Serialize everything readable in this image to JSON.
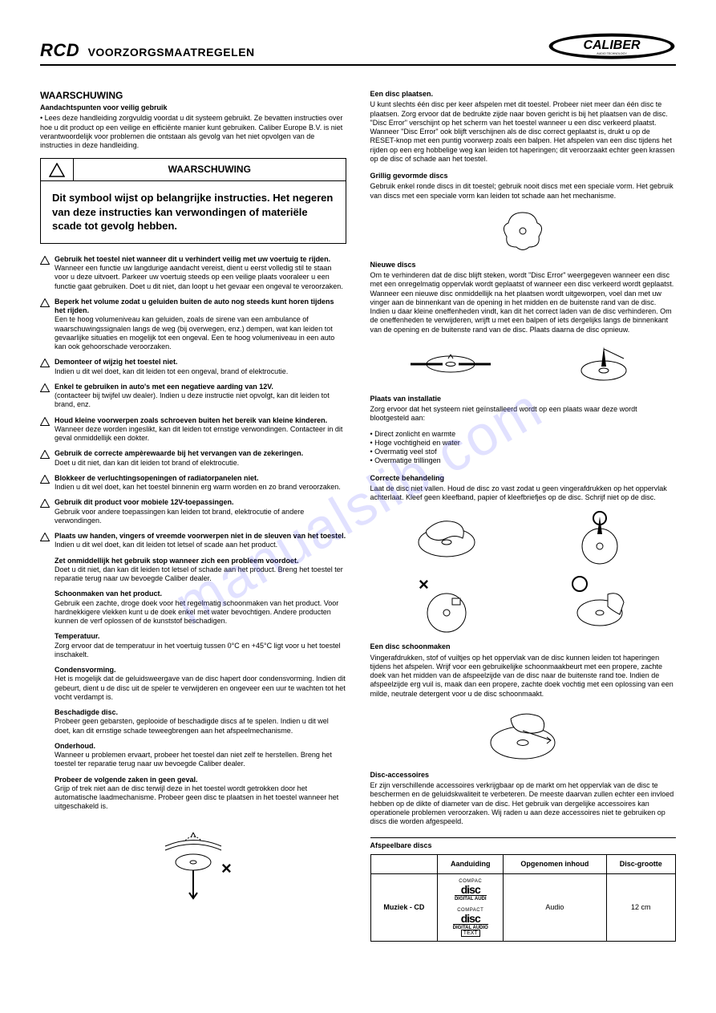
{
  "header": {
    "code": "RCD",
    "title": "VOORZORGSMAATREGELEN",
    "brand": "CALIBER",
    "brand_sub": "AUDIO TECHNOLOGY"
  },
  "watermark": "manualslib.com",
  "left": {
    "warning_heading": "WAARSCHUWING",
    "safe_use_title": "Aandachtspunten voor veilig gebruik",
    "safe_use_text": "• Lees deze handleiding zorgvuldig voordat u dit systeem gebruikt. Ze bevatten instructies over hoe u dit product op een veilige en efficiënte manier kunt gebruiken. Caliber Europe B.V. is niet verantwoordelijk voor problemen die ontstaan als gevolg van het niet opvolgen van de instructies in deze handleiding.",
    "warning_box_label": "WAARSCHUWING",
    "warning_box_text": "Dit symbool wijst op belangrijke instructies. Het negeren van deze instructies kan verwondingen of materiële scade tot gevolg hebben.",
    "tri_items": [
      {
        "b": "Gebruik het toestel niet wanneer dit u verhindert veilig met uw voertuig te rijden.",
        "t": "Wanneer een functie uw langdurige aandacht vereist, dient u eerst volledig stil te staan voor u deze uitvoert. Parkeer uw voertuig steeds op een veilige plaats vooraleer u een functie gaat gebruiken. Doet u dit niet, dan loopt u het gevaar een ongeval te veroorzaken."
      },
      {
        "b": "Beperk het volume zodat u geluiden buiten de auto nog steeds kunt horen tijdens het rijden.",
        "t": "Een te hoog volumeniveau kan geluiden, zoals de sirene van een ambulance of waarschuwingssignalen langs de weg (bij overwegen, enz.) dempen, wat kan leiden tot gevaarlijke situaties en mogelijk tot een ongeval. Een te hoog volumeniveau in een auto kan ook gehoorschade veroorzaken."
      },
      {
        "b": "Demonteer of wijzig het toestel niet.",
        "t": "Indien u dit wel doet, kan dit leiden tot een ongeval, brand of elektrocutie."
      },
      {
        "b": "Enkel te gebruiken in auto's met een negatieve aarding van 12V.",
        "t": "(contacteer bij twijfel uw dealer). Indien u deze instructie niet opvolgt, kan dit leiden tot brand, enz."
      },
      {
        "b": "Houd kleine voorwerpen zoals schroeven buiten het bereik van kleine kinderen.",
        "t": "Wanneer deze worden ingeslikt, kan dit leiden tot ernstige verwondingen. Contacteer in dit geval onmiddellijk een dokter."
      },
      {
        "b": "Gebruik de correcte ampèrewaarde bij het vervangen van de zekeringen.",
        "t": "Doet u dit niet, dan kan dit leiden tot brand of elektrocutie."
      },
      {
        "b": "Blokkeer de verluchtingsopeningen of radiatorpanelen niet.",
        "t": "Indien u dit wel doet, kan het toestel binnenin erg warm worden en zo brand veroorzaken."
      },
      {
        "b": "Gebruik dit product voor mobiele 12V-toepassingen.",
        "t": "Gebruik voor andere toepassingen kan leiden tot brand, elektrocutie of andere verwondingen."
      },
      {
        "b": "Plaats uw handen, vingers of vreemde voorwerpen niet in de sleuven van het toestel.",
        "t": "Indien u dit wel doet, kan dit leiden tot letsel of scade aan het product."
      }
    ],
    "plain_items": [
      {
        "b": "Zet onmiddellijk het gebruik stop wanneer zich een probleem voordoet.",
        "t": "Doet u dit niet, dan kan dit leiden tot letsel of schade aan het product. Breng het toestel ter reparatie terug naar uw bevoegde Caliber dealer."
      },
      {
        "b": "Schoonmaken van het product.",
        "t": "Gebruik een zachte, droge doek voor het regelmatig schoonmaken van het product. Voor hardnekkigere vlekken kunt u de doek enkel met water bevochtigen. Andere producten kunnen de verf oplossen of de kunststof beschadigen."
      },
      {
        "b": "Temperatuur.",
        "t": "Zorg ervoor dat de temperatuur in het voertuig tussen 0°C en +45°C ligt voor u het toestel inschakelt."
      },
      {
        "b": "Condensvorming.",
        "t": "Het is mogelijk dat de geluidsweergave van de disc hapert door condensvorming. Indien dit gebeurt, dient u de disc uit de speler te verwijderen en ongeveer een uur te wachten tot het vocht verdampt is."
      },
      {
        "b": "Beschadigde disc.",
        "t": "Probeer geen gebarsten, geplooide of beschadigde discs af te spelen. Indien u dit wel doet, kan dit ernstige schade teweegbrengen aan het afspeelmechanisme."
      },
      {
        "b": "Onderhoud.",
        "t": "Wanneer u problemen ervaart, probeer het toestel dan niet zelf te herstellen. Breng het toestel ter reparatie terug naar uw bevoegde Caliber dealer."
      },
      {
        "b": "Probeer de volgende zaken in geen geval.",
        "t": "Grijp of trek niet aan de disc terwijl deze in het toestel wordt getrokken door het automatische laadmechanisme. Probeer geen disc te plaatsen in het toestel wanneer het uitgeschakeld is."
      }
    ]
  },
  "right": {
    "s1_title": "Een disc plaatsen.",
    "s1_text": "U kunt slechts één disc per keer afspelen met dit toestel. Probeer niet meer dan één disc te plaatsen. Zorg ervoor dat de bedrukte zijde naar boven gericht is bij het plaatsen van de disc. \"Disc Error\" verschijnt op het scherm van het toestel wanneer u een disc verkeerd plaatst. Wanneer \"Disc Error\" ook blijft verschijnen als de disc correct geplaatst is, drukt u op de RESET-knop met een puntig voorwerp zoals een balpen. Het afspelen van een disc tijdens het rijden op een erg hobbelige weg kan leiden tot haperingen; dit veroorzaakt echter geen krassen op de disc of schade aan het toestel.",
    "s2_title": "Grillig gevormde discs",
    "s2_text": "Gebruik enkel ronde discs in dit toestel; gebruik nooit discs met een speciale vorm. Het gebruik van discs met een speciale vorm kan leiden tot schade aan het mechanisme.",
    "s3_title": "Nieuwe discs",
    "s3_text": "Om te verhinderen dat de disc blijft steken, wordt \"Disc Error\" weergegeven wanneer een disc met een onregelmatig oppervlak wordt geplaatst of wanneer een disc verkeerd wordt geplaatst. Wanneer een nieuwe disc onmiddellijk na het plaatsen wordt uitgeworpen, voel dan met uw vinger aan de binnenkant van de opening in het midden en de buitenste rand van de disc. Indien u daar kleine oneffenheden vindt, kan dit het correct laden van de disc verhinderen. Om de oneffenheden te verwijderen, wrijft u met een balpen of iets dergelijks langs de binnenkant van de opening en de buitenste rand van de disc. Plaats daarna de disc opnieuw.",
    "s4_title": "Plaats van installatie",
    "s4_text": "Zorg ervoor dat het systeem niet geïnstalleerd wordt op een plaats waar deze wordt blootgesteld aan:",
    "s4_bullets": [
      "Direct zonlicht en warmte",
      "Hoge vochtigheid en water",
      "Overmatig veel stof",
      "Overmatige trillingen"
    ],
    "s5_title": "Correcte behandeling",
    "s5_text": "Laat de disc niet vallen. Houd de disc zo vast zodat u geen vingerafdrukken op het oppervlak achterlaat. Kleef geen kleefband, papier of kleefbriefjes op de disc. Schrijf niet op de disc.",
    "s6_title": "Een disc schoonmaken",
    "s6_text": "Vingerafdrukken, stof of vuiltjes op het oppervlak van de disc kunnen leiden tot haperingen tijdens het afspelen. Wrijf voor een gebruikelijke schoonmaakbeurt met een propere, zachte doek van het midden van de afspeelzijde van de disc naar de buitenste rand toe. Indien de afspeelzijde erg vuil is, maak dan een propere, zachte doek vochtig met een oplossing van een milde, neutrale detergent voor u de disc schoonmaakt.",
    "s7_title": "Disc-accessoires",
    "s7_text": "Er zijn verschillende accessoires verkrijgbaar op de markt om het oppervlak van de disc te beschermen en de geluidskwaliteit te verbeteren. De meeste daarvan zullen echter een invloed hebben op de dikte of diameter van de disc. Het gebruik van dergelijke accessoires kan operationele problemen veroorzaken. Wij raden u aan deze accessoires niet te gebruiken op discs die worden afgespeeld.",
    "table_title": "Afspeelbare discs",
    "table": {
      "headers": [
        "",
        "Aanduiding",
        "Opgenomen inhoud",
        "Disc-grootte"
      ],
      "row_label": "Muziek - CD",
      "logo1_top": "COMPAC",
      "logo1_mid": "disc",
      "logo1_bot": "DIGITAL AUDI",
      "logo2_top": "COMPACT",
      "logo2_mid": "disc",
      "logo2_bot1": "DIGITAL AUDIO",
      "logo2_bot2": "TEXT",
      "content": "Audio",
      "size": "12 cm"
    }
  }
}
